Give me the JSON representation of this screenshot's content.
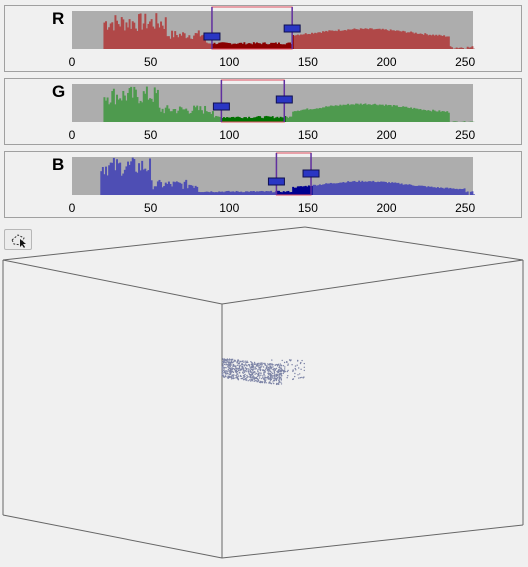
{
  "histograms": [
    {
      "channel": "R",
      "range": [
        89,
        140
      ],
      "bar_color": "#b04848",
      "fill_color": "#8a0000",
      "ticks": [
        "0",
        "50",
        "100",
        "150",
        "200",
        "250"
      ]
    },
    {
      "channel": "G",
      "range": [
        95,
        135
      ],
      "bar_color": "#4e9a4e",
      "fill_color": "#007000",
      "ticks": [
        "0",
        "50",
        "100",
        "150",
        "200",
        "250"
      ]
    },
    {
      "channel": "B",
      "range": [
        130,
        152
      ],
      "bar_color": "#4e4eb4",
      "fill_color": "#000090",
      "ticks": [
        "0",
        "50",
        "100",
        "150",
        "200",
        "250"
      ]
    }
  ],
  "toolbar": {
    "rotate_tool_icon": "rotate-select-icon"
  },
  "view3d": {
    "point_color": "#7d84a6"
  }
}
